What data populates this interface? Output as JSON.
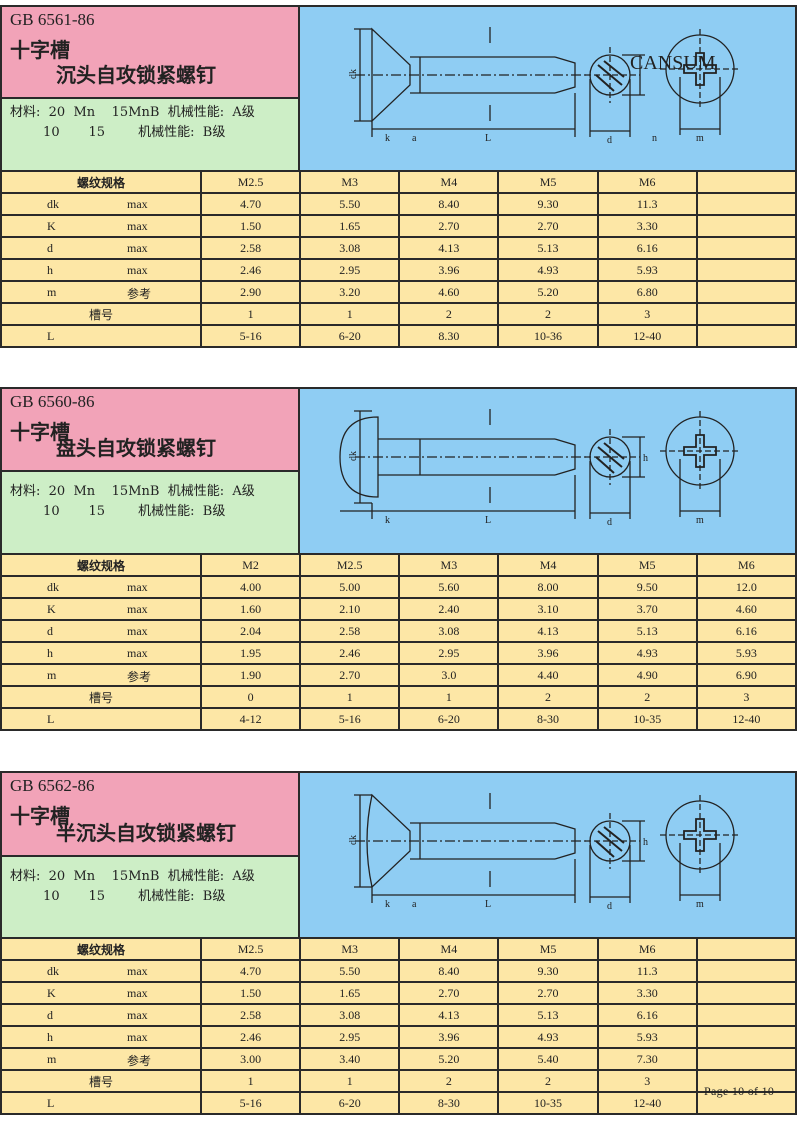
{
  "watermark": "CANSUM",
  "footer": "Page 10 of 10",
  "colors": {
    "title_bg": "#f2a3b8",
    "material_bg": "#cdeec6",
    "diagram_bg": "#8fcdf3",
    "table_bg": "#fde7a6"
  },
  "diagram_labels": {
    "dk": "dk",
    "k": "k",
    "a": "a",
    "L": "L",
    "d": "d",
    "n": "n",
    "m": "m",
    "h": "h"
  },
  "sections": [
    {
      "code": "GB 6561-86",
      "title1": "十字槽",
      "title2": "沉头自攻锁紧螺钉",
      "material_line1": "材料:  20  Mn    15MnB  机械性能:  A级",
      "material_line2": "        10       15        机械性能:  B级",
      "head": "countersunk",
      "spec_label": "螺纹规格",
      "sizes": [
        "M2.5",
        "M3",
        "M4",
        "M5",
        "M6",
        ""
      ],
      "rows": [
        {
          "sym": "dk",
          "qual": "max",
          "values": [
            "4.70",
            "5.50",
            "8.40",
            "9.30",
            "11.3",
            ""
          ]
        },
        {
          "sym": "K",
          "qual": "max",
          "values": [
            "1.50",
            "1.65",
            "2.70",
            "2.70",
            "3.30",
            ""
          ]
        },
        {
          "sym": "d",
          "qual": "max",
          "values": [
            "2.58",
            "3.08",
            "4.13",
            "5.13",
            "6.16",
            ""
          ]
        },
        {
          "sym": "h",
          "qual": "max",
          "values": [
            "2.46",
            "2.95",
            "3.96",
            "4.93",
            "5.93",
            ""
          ]
        },
        {
          "sym": "m",
          "qual": "参考",
          "values": [
            "2.90",
            "3.20",
            "4.60",
            "5.20",
            "6.80",
            ""
          ]
        },
        {
          "label": "槽号",
          "values": [
            "1",
            "1",
            "2",
            "2",
            "3",
            ""
          ]
        },
        {
          "sym": "L",
          "qual": "",
          "values": [
            "5-16",
            "6-20",
            "8.30",
            "10-36",
            "12-40",
            ""
          ]
        }
      ]
    },
    {
      "code": "GB 6560-86",
      "title1": "十字槽",
      "title2": "盘头自攻锁紧螺钉",
      "material_line1": "材料:  20  Mn    15MnB  机械性能:  A级",
      "material_line2": "        10       15        机械性能:  B级",
      "head": "pan",
      "spec_label": "螺纹规格",
      "sizes": [
        "M2",
        "M2.5",
        "M3",
        "M4",
        "M5",
        "M6"
      ],
      "rows": [
        {
          "sym": "dk",
          "qual": "max",
          "values": [
            "4.00",
            "5.00",
            "5.60",
            "8.00",
            "9.50",
            "12.0"
          ]
        },
        {
          "sym": "K",
          "qual": "max",
          "values": [
            "1.60",
            "2.10",
            "2.40",
            "3.10",
            "3.70",
            "4.60"
          ]
        },
        {
          "sym": "d",
          "qual": "max",
          "values": [
            "2.04",
            "2.58",
            "3.08",
            "4.13",
            "5.13",
            "6.16"
          ]
        },
        {
          "sym": "h",
          "qual": "max",
          "values": [
            "1.95",
            "2.46",
            "2.95",
            "3.96",
            "4.93",
            "5.93"
          ]
        },
        {
          "sym": "m",
          "qual": "参考",
          "values": [
            "1.90",
            "2.70",
            "3.0",
            "4.40",
            "4.90",
            "6.90"
          ]
        },
        {
          "label": "槽号",
          "values": [
            "0",
            "1",
            "1",
            "2",
            "2",
            "3"
          ]
        },
        {
          "sym": "L",
          "qual": "",
          "values": [
            "4-12",
            "5-16",
            "6-20",
            "8-30",
            "10-35",
            "12-40"
          ]
        }
      ]
    },
    {
      "code": "GB 6562-86",
      "title1": "十字槽",
      "title2": "半沉头自攻锁紧螺钉",
      "material_line1": "材料:  20  Mn    15MnB  机械性能:  A级",
      "material_line2": "        10       15        机械性能:  B级",
      "head": "raised",
      "spec_label": "螺纹规格",
      "sizes": [
        "M2.5",
        "M3",
        "M4",
        "M5",
        "M6",
        ""
      ],
      "rows": [
        {
          "sym": "dk",
          "qual": "max",
          "values": [
            "4.70",
            "5.50",
            "8.40",
            "9.30",
            "11.3",
            ""
          ]
        },
        {
          "sym": "K",
          "qual": "max",
          "values": [
            "1.50",
            "1.65",
            "2.70",
            "2.70",
            "3.30",
            ""
          ]
        },
        {
          "sym": "d",
          "qual": "max",
          "values": [
            "2.58",
            "3.08",
            "4.13",
            "5.13",
            "6.16",
            ""
          ]
        },
        {
          "sym": "h",
          "qual": "max",
          "values": [
            "2.46",
            "2.95",
            "3.96",
            "4.93",
            "5.93",
            ""
          ]
        },
        {
          "sym": "m",
          "qual": "参考",
          "values": [
            "3.00",
            "3.40",
            "5.20",
            "5.40",
            "7.30",
            ""
          ]
        },
        {
          "label": "槽号",
          "values": [
            "1",
            "1",
            "2",
            "2",
            "3",
            ""
          ]
        },
        {
          "sym": "L",
          "qual": "",
          "values": [
            "5-16",
            "6-20",
            "8-30",
            "10-35",
            "12-40",
            ""
          ]
        }
      ]
    }
  ]
}
